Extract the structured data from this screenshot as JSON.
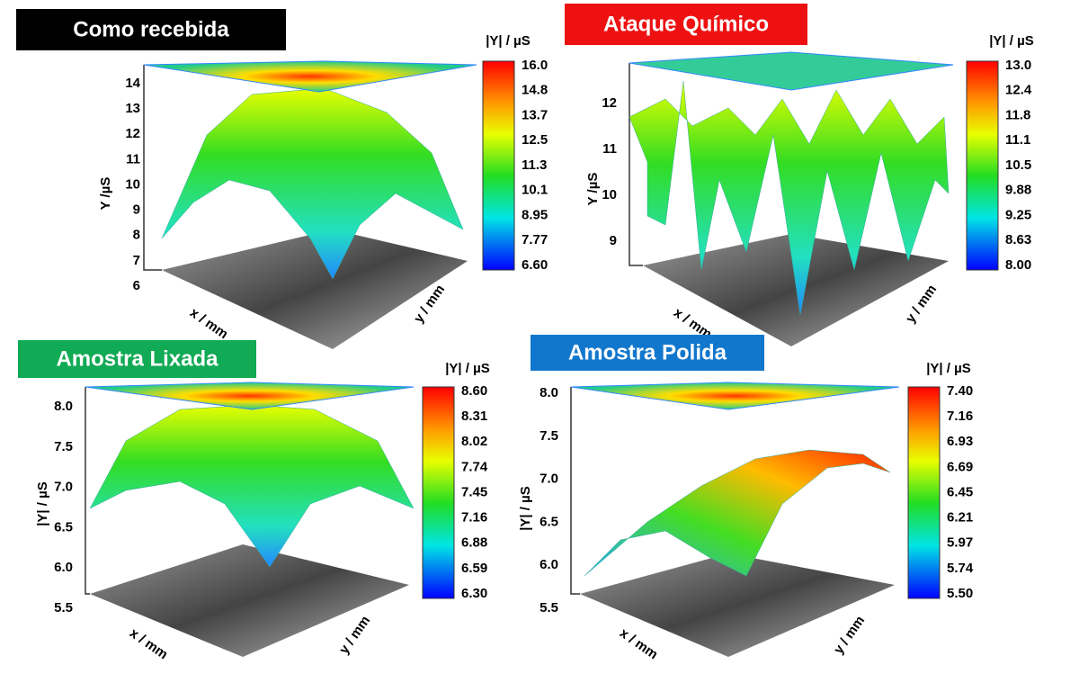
{
  "panels": [
    {
      "title": "Como recebida",
      "z_label": "Y /µS",
      "z_ticks": [
        "14",
        "13",
        "12",
        "11",
        "10",
        "9",
        "8",
        "7",
        "6"
      ],
      "colorbar_label": "|Y| / µS",
      "colorbar_ticks": [
        "16.0",
        "14.8",
        "13.7",
        "12.5",
        "11.3",
        "10.1",
        "8.95",
        "7.77",
        "6.60"
      ],
      "x_label": "x / mm",
      "y_label": "y / mm"
    },
    {
      "title": "Ataque Químico",
      "z_label": "Y /µS",
      "z_ticks": [
        "12",
        "11",
        "10",
        "9"
      ],
      "colorbar_label": "|Y| / µS",
      "colorbar_ticks": [
        "13.0",
        "12.4",
        "11.8",
        "11.1",
        "10.5",
        "9.88",
        "9.25",
        "8.63",
        "8.00"
      ],
      "x_label": "x / mm",
      "y_label": "y / mm"
    },
    {
      "title": "Amostra Lixada",
      "z_label": "|Y| / µS",
      "z_ticks": [
        "8.0",
        "7.5",
        "7.0",
        "6.5",
        "6.0",
        "5.5"
      ],
      "colorbar_label": "|Y| / µS",
      "colorbar_ticks": [
        "8.60",
        "8.31",
        "8.02",
        "7.74",
        "7.45",
        "7.16",
        "6.88",
        "6.59",
        "6.30"
      ],
      "x_label": "x / mm",
      "y_label": "y / mm"
    },
    {
      "title": "Amostra Polida",
      "z_label": "|Y| / µS",
      "z_ticks": [
        "8.0",
        "7.5",
        "7.0",
        "6.5",
        "6.0",
        "5.5"
      ],
      "colorbar_label": "|Y| / µS",
      "colorbar_ticks": [
        "7.40",
        "7.16",
        "6.93",
        "6.69",
        "6.45",
        "6.21",
        "5.97",
        "5.74",
        "5.50"
      ],
      "x_label": "x / mm",
      "y_label": "y / mm"
    }
  ]
}
